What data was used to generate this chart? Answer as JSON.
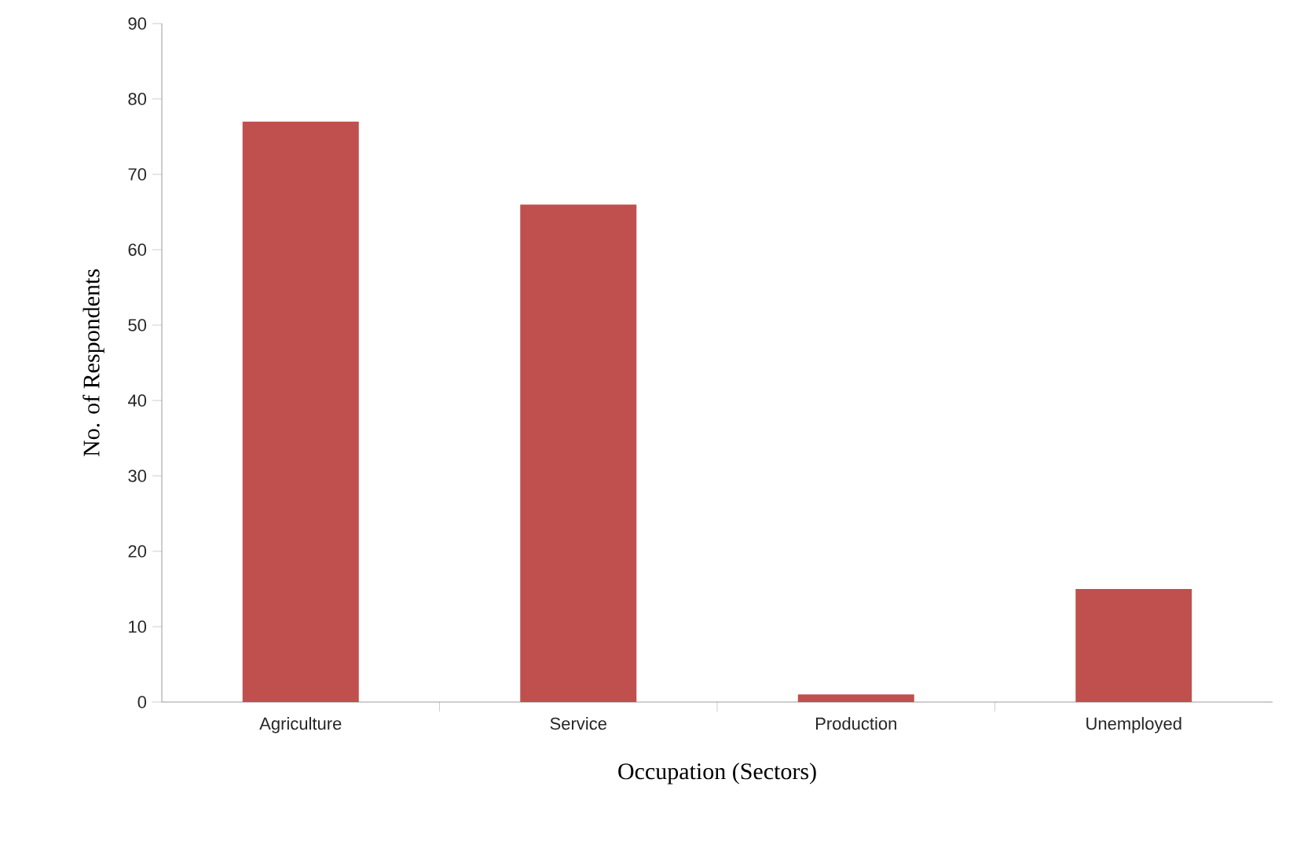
{
  "chart_data": {
    "type": "bar",
    "xlabel": "Occupation (Sectors)",
    "ylabel": "No. of Respondents",
    "categories": [
      "Agriculture",
      "Service",
      "Production",
      "Unemployed"
    ],
    "values": [
      77,
      66,
      1,
      15
    ],
    "color": "#c0504d",
    "ylim": [
      0,
      90
    ],
    "yticks": [
      0,
      10,
      20,
      30,
      40,
      50,
      60,
      70,
      80,
      90
    ],
    "grid": false
  }
}
